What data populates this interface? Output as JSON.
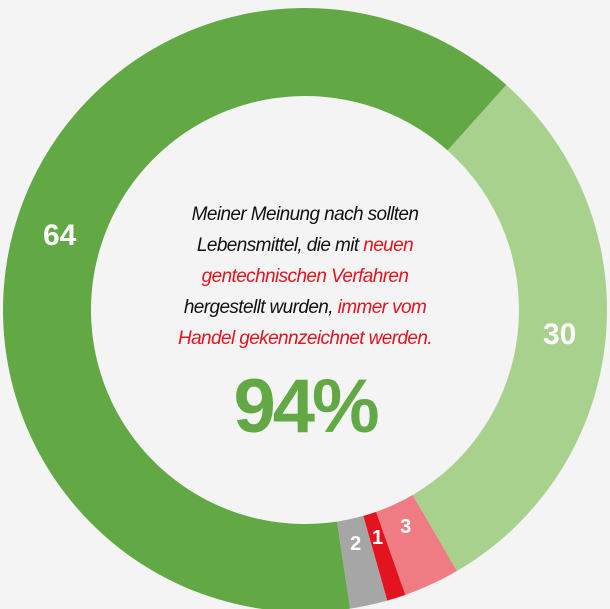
{
  "chart_data": {
    "type": "donut",
    "values": [
      64,
      30,
      3,
      1,
      2
    ],
    "colors": [
      "#62a844",
      "#a9d18e",
      "#ef7b83",
      "#e31420",
      "#a6a6a6"
    ],
    "center_text": [
      [
        {
          "text": "Meiner Meinung nach sollten",
          "color": "#111111"
        }
      ],
      [
        {
          "text": "Lebensmittel, die mit ",
          "color": "#111111"
        },
        {
          "text": "neuen",
          "color": "#e31420"
        }
      ],
      [
        {
          "text": "gentechnischen Verfahren",
          "color": "#e31420"
        }
      ],
      [
        {
          "text": "hergestellt wurden, ",
          "color": "#111111"
        },
        {
          "text": "immer vom",
          "color": "#e31420"
        }
      ],
      [
        {
          "text": "Handel gekennzeichnet werden.",
          "color": "#e31420"
        }
      ]
    ],
    "headline": "94%",
    "headline_color": "#62a844"
  }
}
